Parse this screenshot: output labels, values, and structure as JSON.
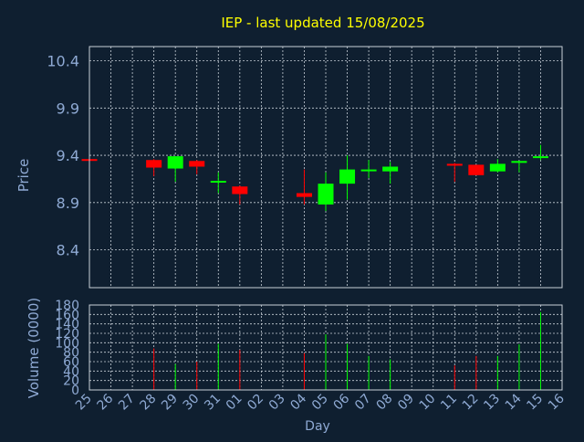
{
  "chart_data": {
    "type": "candlestick",
    "title": "IEP - last updated 15/08/2025",
    "xlabel": "Day",
    "colors": {
      "background": "#0f1f30",
      "title": "#ffff00",
      "axis_text": "#8faad4",
      "frame": "#c8d0d8",
      "grid": "#c8d0d8",
      "up": "#00ff00",
      "down": "#ff0000"
    },
    "x_tick_labels": [
      "25",
      "26",
      "27",
      "28",
      "29",
      "30",
      "31",
      "01",
      "02",
      "03",
      "04",
      "05",
      "06",
      "07",
      "08",
      "09",
      "10",
      "11",
      "12",
      "13",
      "14",
      "15",
      "16"
    ],
    "price_panel": {
      "ylabel": "Price",
      "ylim": [
        8.0,
        10.55
      ],
      "yticks": [
        8.4,
        8.9,
        9.4,
        9.9,
        10.4
      ],
      "ytick_labels": [
        "8.4",
        "8.9",
        "9.4",
        "9.9",
        "10.4"
      ],
      "candles": [
        {
          "day": "25",
          "open": 9.36,
          "high": 9.37,
          "low": 9.35,
          "close": 9.35
        },
        {
          "day": "28",
          "open": 9.35,
          "high": 9.36,
          "low": 9.18,
          "close": 9.27
        },
        {
          "day": "29",
          "open": 9.26,
          "high": 9.39,
          "low": 9.12,
          "close": 9.39
        },
        {
          "day": "30",
          "open": 9.34,
          "high": 9.35,
          "low": 9.2,
          "close": 9.28
        },
        {
          "day": "31",
          "open": 9.12,
          "high": 9.22,
          "low": 9.0,
          "close": 9.13
        },
        {
          "day": "01",
          "open": 9.07,
          "high": 9.08,
          "low": 8.88,
          "close": 8.99
        },
        {
          "day": "04",
          "open": 9.0,
          "high": 9.25,
          "low": 8.88,
          "close": 8.96
        },
        {
          "day": "05",
          "open": 8.88,
          "high": 9.22,
          "low": 8.81,
          "close": 9.1
        },
        {
          "day": "06",
          "open": 9.1,
          "high": 9.4,
          "low": 8.93,
          "close": 9.25
        },
        {
          "day": "07",
          "open": 9.24,
          "high": 9.35,
          "low": 9.16,
          "close": 9.25
        },
        {
          "day": "08",
          "open": 9.23,
          "high": 9.33,
          "low": 9.1,
          "close": 9.28
        },
        {
          "day": "11",
          "open": 9.31,
          "high": 9.32,
          "low": 9.12,
          "close": 9.29
        },
        {
          "day": "12",
          "open": 9.3,
          "high": 9.3,
          "low": 9.19,
          "close": 9.19
        },
        {
          "day": "13",
          "open": 9.23,
          "high": 9.36,
          "low": 9.22,
          "close": 9.31
        },
        {
          "day": "14",
          "open": 9.32,
          "high": 9.34,
          "low": 9.22,
          "close": 9.34
        },
        {
          "day": "15",
          "open": 9.38,
          "high": 9.51,
          "low": 9.35,
          "close": 9.39
        }
      ]
    },
    "volume_panel": {
      "ylabel": "Volume (0000)",
      "ylim": [
        0,
        180
      ],
      "yticks": [
        0,
        20,
        40,
        60,
        80,
        100,
        120,
        140,
        160,
        180
      ],
      "ytick_labels": [
        "0",
        "20",
        "40",
        "60",
        "80",
        "100",
        "120",
        "140",
        "160",
        "180"
      ],
      "bars": [
        {
          "day": "28",
          "value": 88,
          "direction": "down"
        },
        {
          "day": "29",
          "value": 55,
          "direction": "up"
        },
        {
          "day": "30",
          "value": 60,
          "direction": "down"
        },
        {
          "day": "31",
          "value": 98,
          "direction": "up"
        },
        {
          "day": "01",
          "value": 85,
          "direction": "down"
        },
        {
          "day": "04",
          "value": 78,
          "direction": "down"
        },
        {
          "day": "05",
          "value": 118,
          "direction": "up"
        },
        {
          "day": "06",
          "value": 98,
          "direction": "up"
        },
        {
          "day": "07",
          "value": 72,
          "direction": "up"
        },
        {
          "day": "08",
          "value": 65,
          "direction": "up"
        },
        {
          "day": "11",
          "value": 52,
          "direction": "down"
        },
        {
          "day": "12",
          "value": 72,
          "direction": "down"
        },
        {
          "day": "13",
          "value": 72,
          "direction": "up"
        },
        {
          "day": "14",
          "value": 97,
          "direction": "up"
        },
        {
          "day": "15",
          "value": 165,
          "direction": "up"
        }
      ]
    }
  }
}
